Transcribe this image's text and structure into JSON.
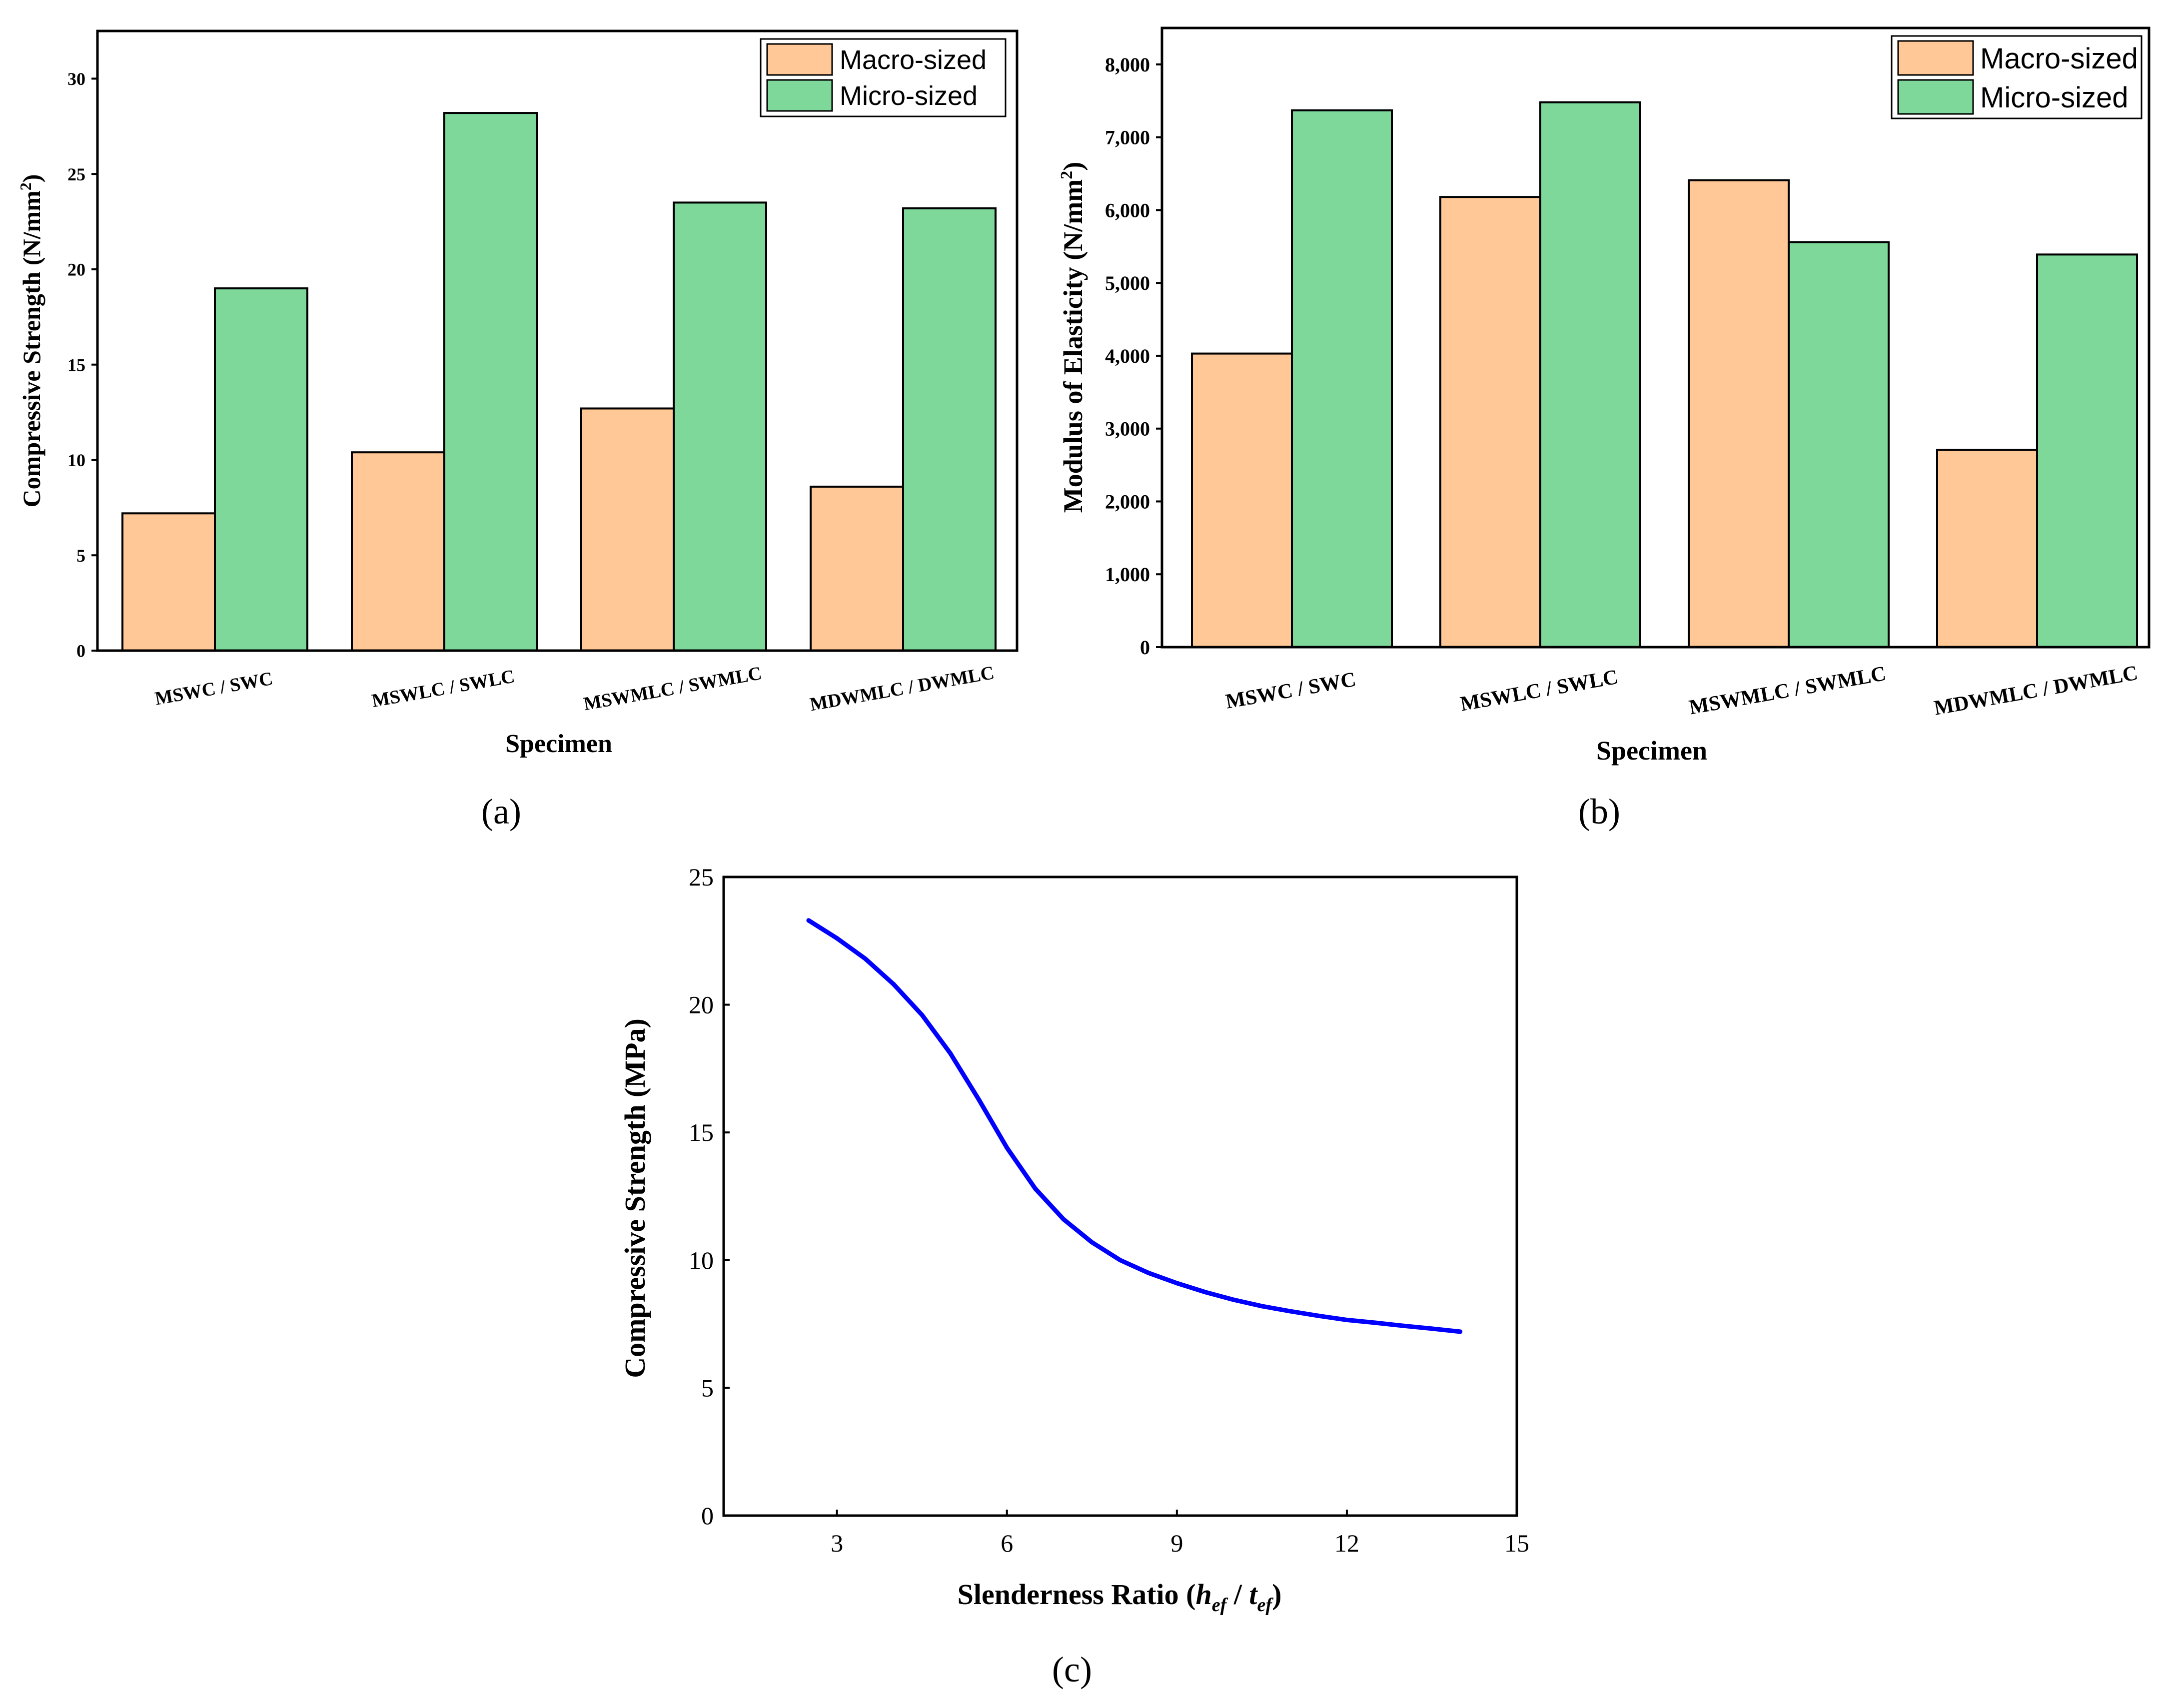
{
  "colors": {
    "macro": "#FFC896",
    "micro": "#7DD89A",
    "line": "#0000FF",
    "axis": "#000000"
  },
  "panels": {
    "a": "(a)",
    "b": "(b)",
    "c": "(c)"
  },
  "chart_data": [
    {
      "id": "a",
      "type": "bar",
      "title": "",
      "xlabel": "Specimen",
      "ylabel_main": "Compressive Strength (N/mm",
      "ylabel_sup": "2",
      "ylabel_end": ")",
      "categories": [
        "MSWC / SWC",
        "MSWLC / SWLC",
        "MSWMLC / SWMLC",
        "MDWMLC / DWMLC"
      ],
      "series": [
        {
          "name": "Macro-sized",
          "values": [
            7.2,
            10.4,
            12.7,
            8.6
          ]
        },
        {
          "name": "Micro-sized",
          "values": [
            19.0,
            28.2,
            23.5,
            23.2
          ]
        }
      ],
      "ylim": [
        0,
        32.5
      ],
      "yticks": [
        0,
        5,
        10,
        15,
        20,
        25,
        30
      ],
      "ytick_labels": [
        "0",
        "5",
        "10",
        "15",
        "20",
        "25",
        "30"
      ],
      "legend": "top-right"
    },
    {
      "id": "b",
      "type": "bar",
      "title": "",
      "xlabel": "Specimen",
      "ylabel_main": "Modulus of Elasticity (N/mm",
      "ylabel_sup": "2",
      "ylabel_end": ")",
      "categories": [
        "MSWC / SWC",
        "MSWLC / SWLC",
        "MSWMLC / SWMLC",
        "MDWMLC / DWMLC"
      ],
      "series": [
        {
          "name": "Macro-sized",
          "values": [
            4030,
            6180,
            6410,
            2710
          ]
        },
        {
          "name": "Micro-sized",
          "values": [
            7370,
            7480,
            5560,
            5390
          ]
        }
      ],
      "ylim": [
        0,
        8500
      ],
      "yticks": [
        0,
        1000,
        2000,
        3000,
        4000,
        5000,
        6000,
        7000,
        8000
      ],
      "ytick_labels": [
        "0",
        "1,000",
        "2,000",
        "3,000",
        "4,000",
        "5,000",
        "6,000",
        "7,000",
        "8,000"
      ],
      "legend": "top-right"
    },
    {
      "id": "c",
      "type": "line",
      "title": "",
      "xlabel_main": "Slenderness Ratio (",
      "xlabel_h": "h",
      "xlabel_ef1": "ef",
      "xlabel_sep": " / ",
      "xlabel_t": "t",
      "xlabel_ef2": "ef",
      "xlabel_end": ")",
      "ylabel": "Compressive Strength (MPa)",
      "xlim": [
        1,
        15
      ],
      "ylim": [
        0,
        25
      ],
      "xticks": [
        3,
        6,
        9,
        12,
        15
      ],
      "xtick_labels": [
        "3",
        "6",
        "9",
        "12",
        "15"
      ],
      "yticks": [
        0,
        5,
        10,
        15,
        20,
        25
      ],
      "ytick_labels": [
        "0",
        "5",
        "10",
        "15",
        "20",
        "25"
      ],
      "series": [
        {
          "name": "Compressive Strength",
          "x": [
            2.5,
            3.0,
            3.5,
            4.0,
            4.5,
            5.0,
            5.5,
            6.0,
            6.5,
            7.0,
            7.5,
            8.0,
            8.5,
            9.0,
            9.5,
            10.0,
            10.5,
            11.0,
            11.5,
            12.0,
            12.5,
            13.0,
            13.5,
            14.0
          ],
          "y": [
            23.3,
            22.6,
            21.8,
            20.8,
            19.6,
            18.1,
            16.3,
            14.4,
            12.8,
            11.6,
            10.7,
            10.0,
            9.5,
            9.1,
            8.75,
            8.45,
            8.2,
            8.0,
            7.82,
            7.66,
            7.55,
            7.43,
            7.32,
            7.2
          ]
        }
      ]
    }
  ]
}
